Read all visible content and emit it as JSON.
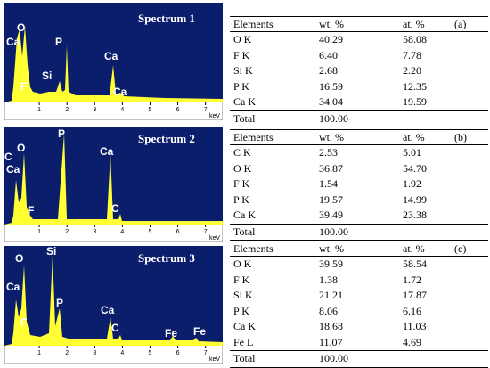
{
  "spectra": [
    {
      "title": "Spectrum 1",
      "peaks": [
        "Ca",
        "O",
        "F",
        "Si",
        "P",
        "Ca",
        "Ca"
      ],
      "xlim": [
        0,
        7.3
      ],
      "xticks": [
        1,
        2,
        3,
        4,
        5,
        6,
        7
      ],
      "unit": "keV"
    },
    {
      "title": "Spectrum 2",
      "peaks": [
        "C",
        "Ca",
        "O",
        "F",
        "P",
        "Ca",
        "C"
      ],
      "xlim": [
        0,
        7.3
      ],
      "xticks": [
        1,
        2,
        3,
        4,
        5,
        6,
        7
      ],
      "unit": "keV"
    },
    {
      "title": "Spectrum 3",
      "peaks": [
        "O",
        "Ca",
        "F",
        "Si",
        "P",
        "Ca",
        "C",
        "Fe",
        "Fe"
      ],
      "xlim": [
        0,
        7.3
      ],
      "xticks": [
        1,
        2,
        3,
        4,
        5,
        6,
        7
      ],
      "unit": "keV"
    }
  ],
  "tables": [
    {
      "label": "(a)",
      "header": [
        "Elements",
        "wt. %",
        "at. %"
      ],
      "rows": [
        [
          "O K",
          "40.29",
          "58.08"
        ],
        [
          "F K",
          "6.40",
          "7.78"
        ],
        [
          "Si K",
          "2.68",
          "2.20"
        ],
        [
          "P K",
          "16.59",
          "12.35"
        ],
        [
          "Ca K",
          "34.04",
          "19.59"
        ],
        [
          "Total",
          "100.00"
        ]
      ]
    },
    {
      "label": "(b)",
      "header": [
        "Elements",
        "wt. %",
        "at. %"
      ],
      "rows": [
        [
          "C K",
          "2.53",
          "5.01"
        ],
        [
          "O K",
          "36.87",
          "54.70"
        ],
        [
          "F K",
          "1.54",
          "1.92"
        ],
        [
          "P K",
          "19.57",
          "14.99"
        ],
        [
          "Ca K",
          "39.49",
          "23.38"
        ],
        [
          "Total",
          "100.00"
        ]
      ]
    },
    {
      "label": "(c)",
      "header": [
        "Elements",
        "wt. %",
        "at. %"
      ],
      "rows": [
        [
          "O K",
          "39.59",
          "58.54"
        ],
        [
          "F K",
          "1.38",
          "1.72"
        ],
        [
          "Si K",
          "21.21",
          "17.87"
        ],
        [
          "P K",
          "8.06",
          "6.16"
        ],
        [
          "Ca K",
          "18.68",
          "11.03"
        ],
        [
          "Fe L",
          "11.07",
          "4.69"
        ],
        [
          "Total",
          "100.00"
        ]
      ]
    }
  ]
}
